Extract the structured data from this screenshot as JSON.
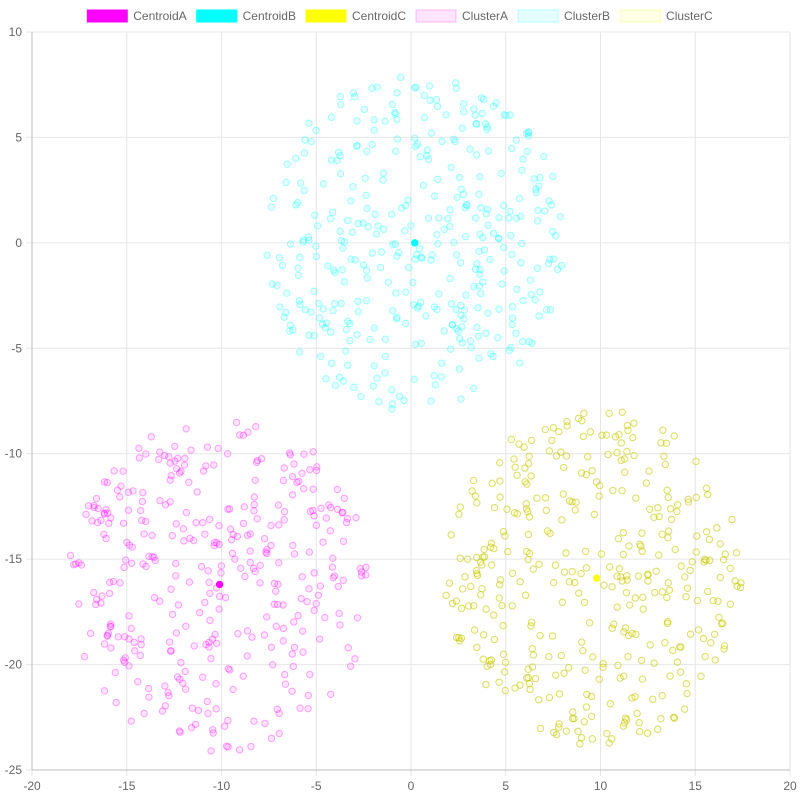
{
  "chart_data": {
    "type": "scatter",
    "title": "",
    "xlabel": "",
    "ylabel": "",
    "xlim": [
      -20,
      20
    ],
    "ylim": [
      -25,
      10
    ],
    "x_ticks": [
      -20,
      -15,
      -10,
      -5,
      0,
      5,
      10,
      15,
      20
    ],
    "y_ticks": [
      10,
      5,
      0,
      -5,
      -10,
      -15,
      -20,
      -25
    ],
    "grid": true,
    "legend_position": "top-center",
    "series": [
      {
        "name": "CentroidA",
        "color": "#ff00ff",
        "role": "centroid",
        "points": [
          [
            -10.1,
            -16.2
          ]
        ]
      },
      {
        "name": "CentroidB",
        "color": "#00ffff",
        "role": "centroid",
        "points": [
          [
            0.2,
            0.0
          ]
        ]
      },
      {
        "name": "CentroidC",
        "color": "#ffff00",
        "role": "centroid",
        "points": [
          [
            9.8,
            -15.9
          ]
        ]
      },
      {
        "name": "ClusterA",
        "color": "#ff00ff",
        "role": "cluster",
        "cloud": {
          "cx": -10.1,
          "cy": -16.2,
          "radius": 8.0,
          "count": 360,
          "seed": 11
        }
      },
      {
        "name": "ClusterB",
        "color": "#00ffff",
        "role": "cluster",
        "cloud": {
          "cx": 0.2,
          "cy": 0.0,
          "radius": 8.0,
          "count": 380,
          "seed": 23
        }
      },
      {
        "name": "ClusterC",
        "color": "#ffff00",
        "role": "cluster",
        "cloud": {
          "cx": 9.8,
          "cy": -15.9,
          "radius": 8.0,
          "count": 370,
          "seed": 37
        }
      }
    ]
  }
}
